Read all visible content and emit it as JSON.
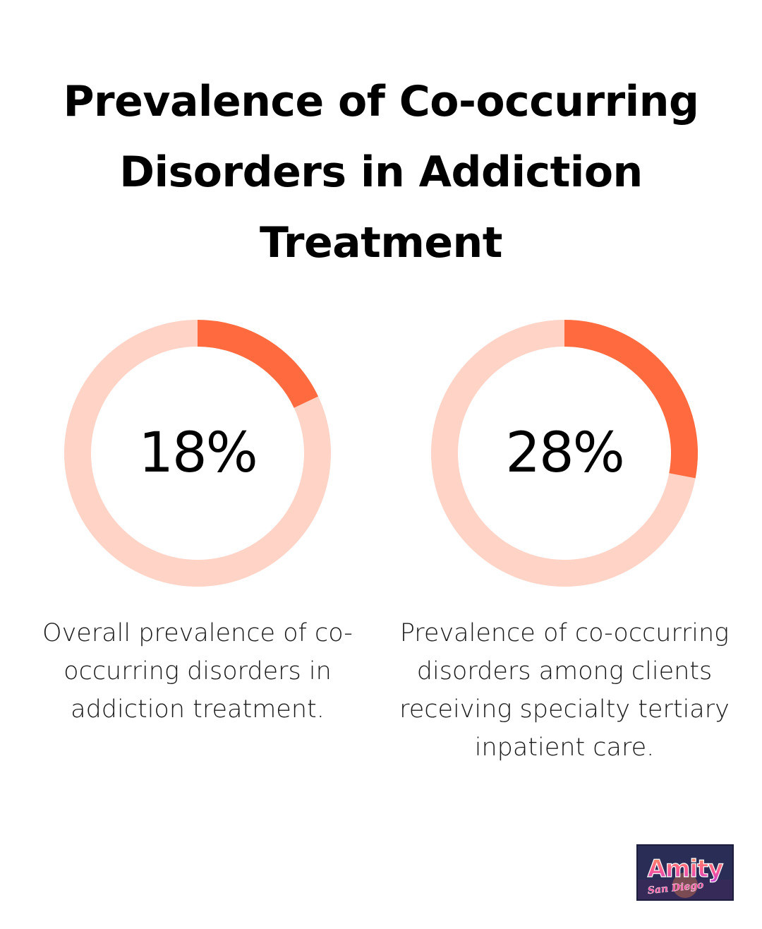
{
  "title": "Prevalence of Co-occurring Disorders in Addiction Treatment",
  "colors": {
    "accent": "#ff6b3f",
    "track": "#ffd3c6",
    "background": "#ffffff",
    "text": "#000000"
  },
  "chart_data": [
    {
      "type": "pie",
      "values": [
        18,
        82
      ],
      "label": "18%",
      "description": "Overall prevalence of co-occurring disorders in addiction treatment."
    },
    {
      "type": "pie",
      "values": [
        28,
        72
      ],
      "label": "28%",
      "description": "Prevalence of co-occurring disorders among clients receiving specialty tertiary inpatient care."
    }
  ],
  "logo": {
    "text": "Amity",
    "subtext": "San Diego"
  }
}
